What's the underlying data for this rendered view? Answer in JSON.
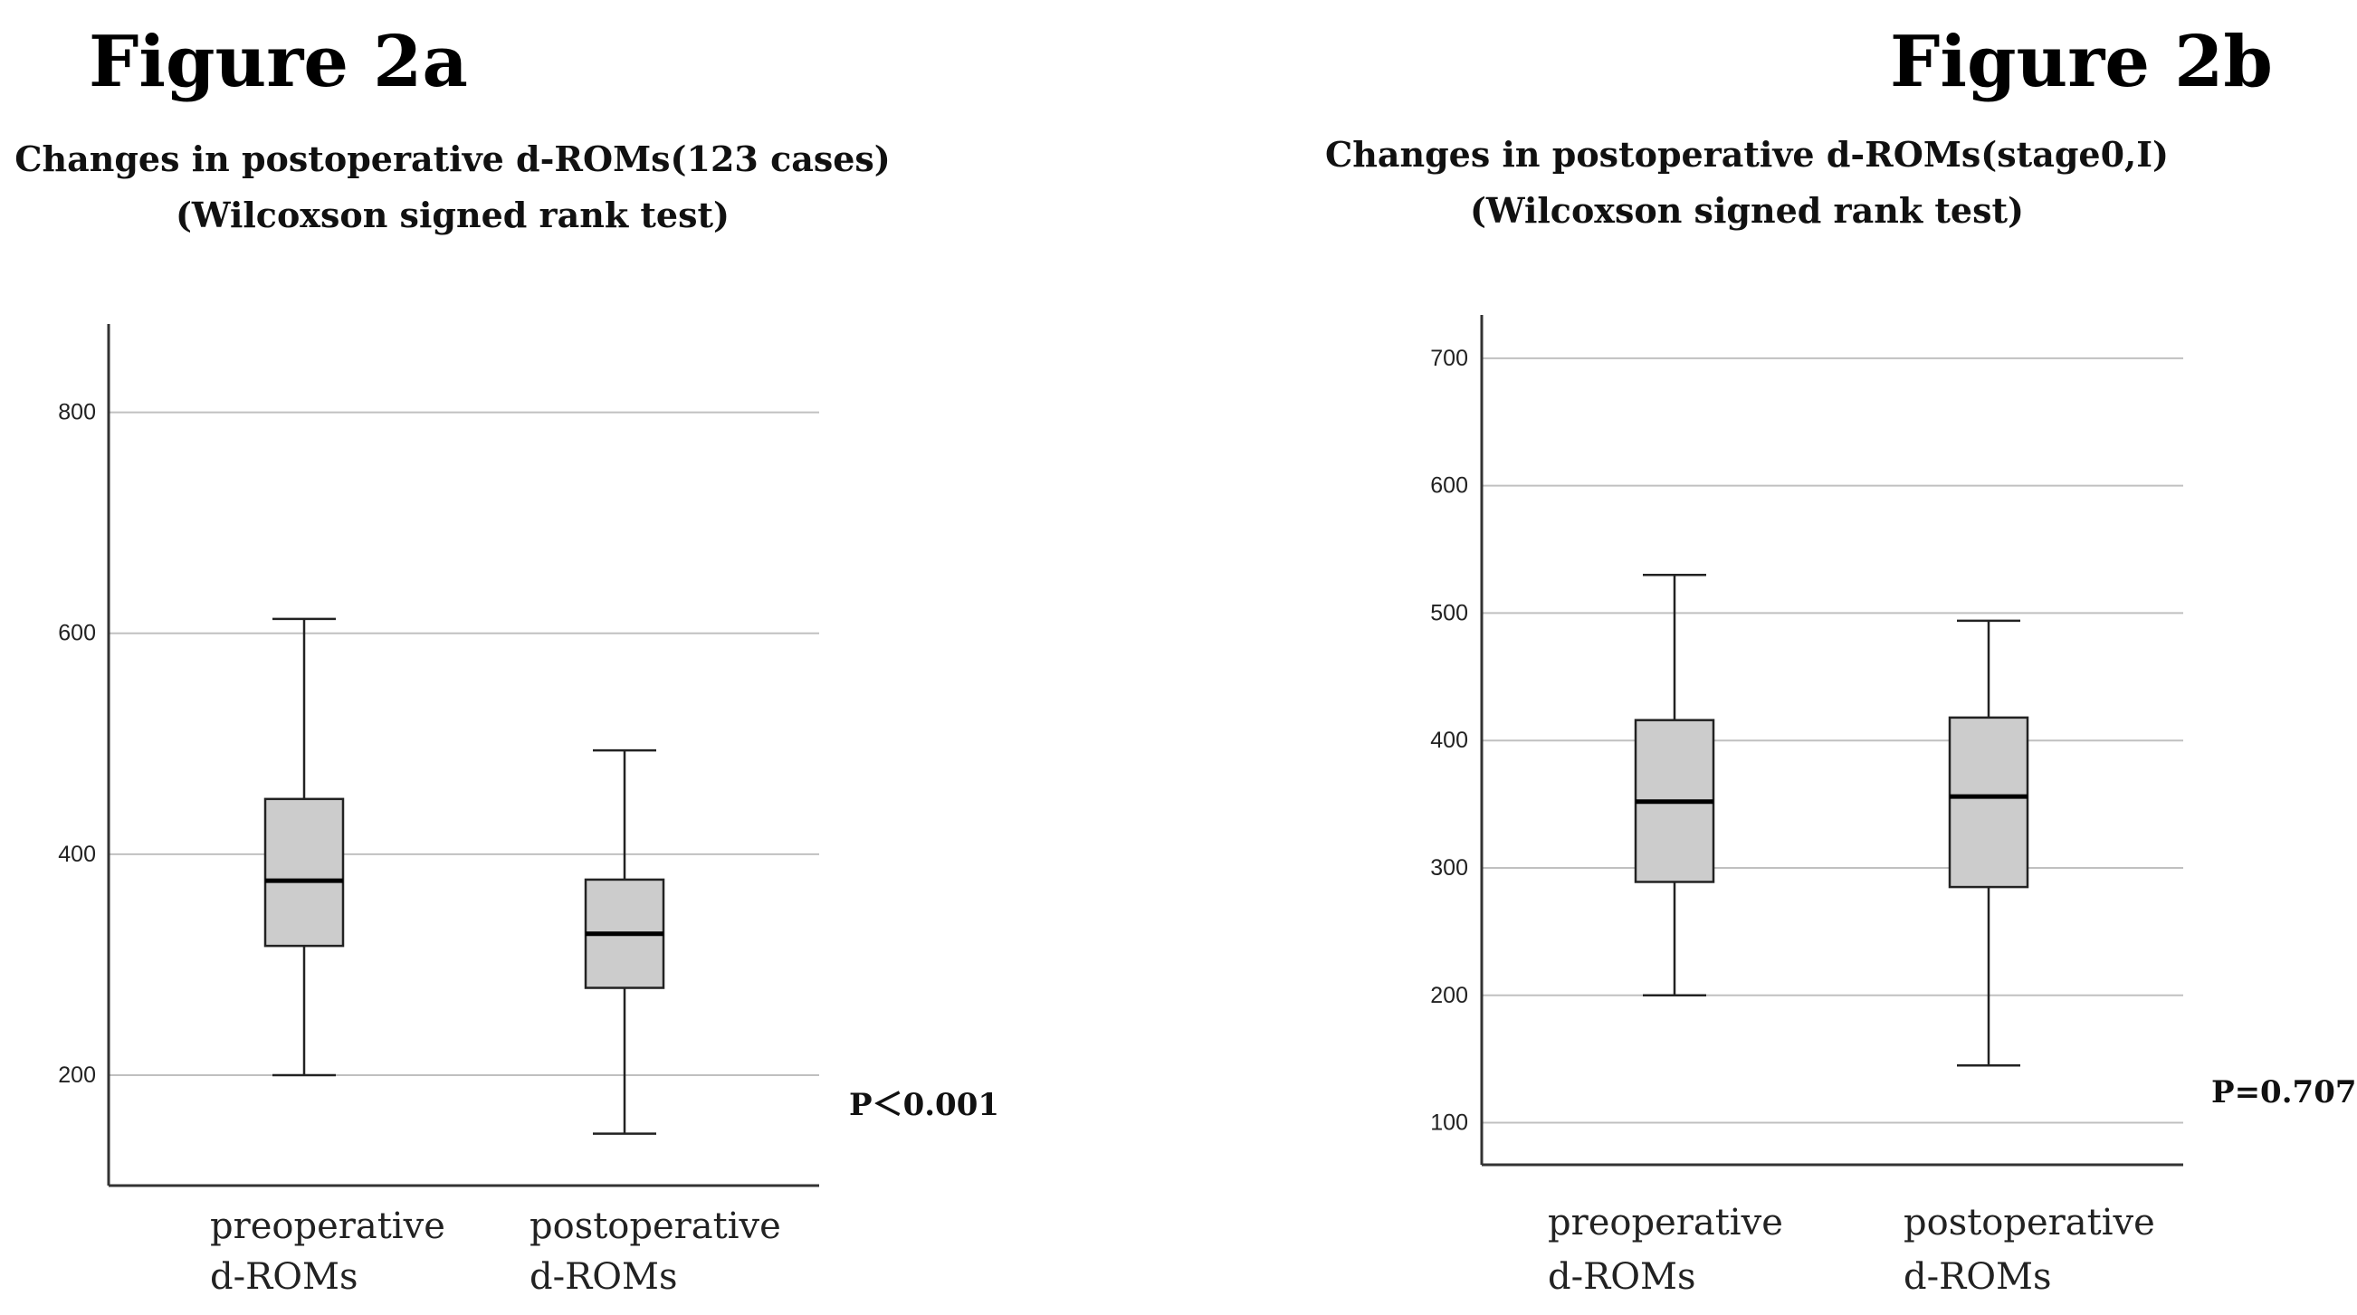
{
  "chart_data": [
    {
      "type": "boxplot",
      "figure_label": "Figure 2a",
      "title": "Changes in postoperative d-ROMs(123 cases)",
      "subtitle": "(Wilcoxson signed rank test)",
      "ylim": [
        100,
        880
      ],
      "yticks": [
        200,
        400,
        600,
        800
      ],
      "grid": true,
      "categories": [
        {
          "line1": "preoperative",
          "line2": "d-ROMs"
        },
        {
          "line1": "postoperative",
          "line2": "d-ROMs"
        }
      ],
      "boxes": [
        {
          "whisker_low": 200,
          "q1": 317,
          "median": 376,
          "q3": 450,
          "whisker_high": 613
        },
        {
          "whisker_low": 147,
          "q1": 279,
          "median": 328,
          "q3": 377,
          "whisker_high": 494
        }
      ],
      "annotation": "P＜0.001",
      "colors": {
        "box": "#cccccc",
        "grid": "#c0c0c0",
        "axis": "#333333"
      }
    },
    {
      "type": "boxplot",
      "figure_label": "Figure 2b",
      "title": "Changes in postoperative d-ROMs(stage0,I)",
      "subtitle": "(Wilcoxson signed rank test)",
      "ylim": [
        67,
        734
      ],
      "yticks": [
        100,
        200,
        300,
        400,
        500,
        600,
        700
      ],
      "grid": true,
      "categories": [
        {
          "line1": "preoperative",
          "line2": "d-ROMs"
        },
        {
          "line1": "postoperative",
          "line2": "d-ROMs"
        }
      ],
      "boxes": [
        {
          "whisker_low": 200,
          "q1": 289,
          "median": 352,
          "q3": 416,
          "whisker_high": 530
        },
        {
          "whisker_low": 145,
          "q1": 285,
          "median": 356,
          "q3": 418,
          "whisker_high": 494
        }
      ],
      "annotation": "P=0.707",
      "colors": {
        "box": "#cccccc",
        "grid": "#c0c0c0",
        "axis": "#333333"
      }
    }
  ]
}
